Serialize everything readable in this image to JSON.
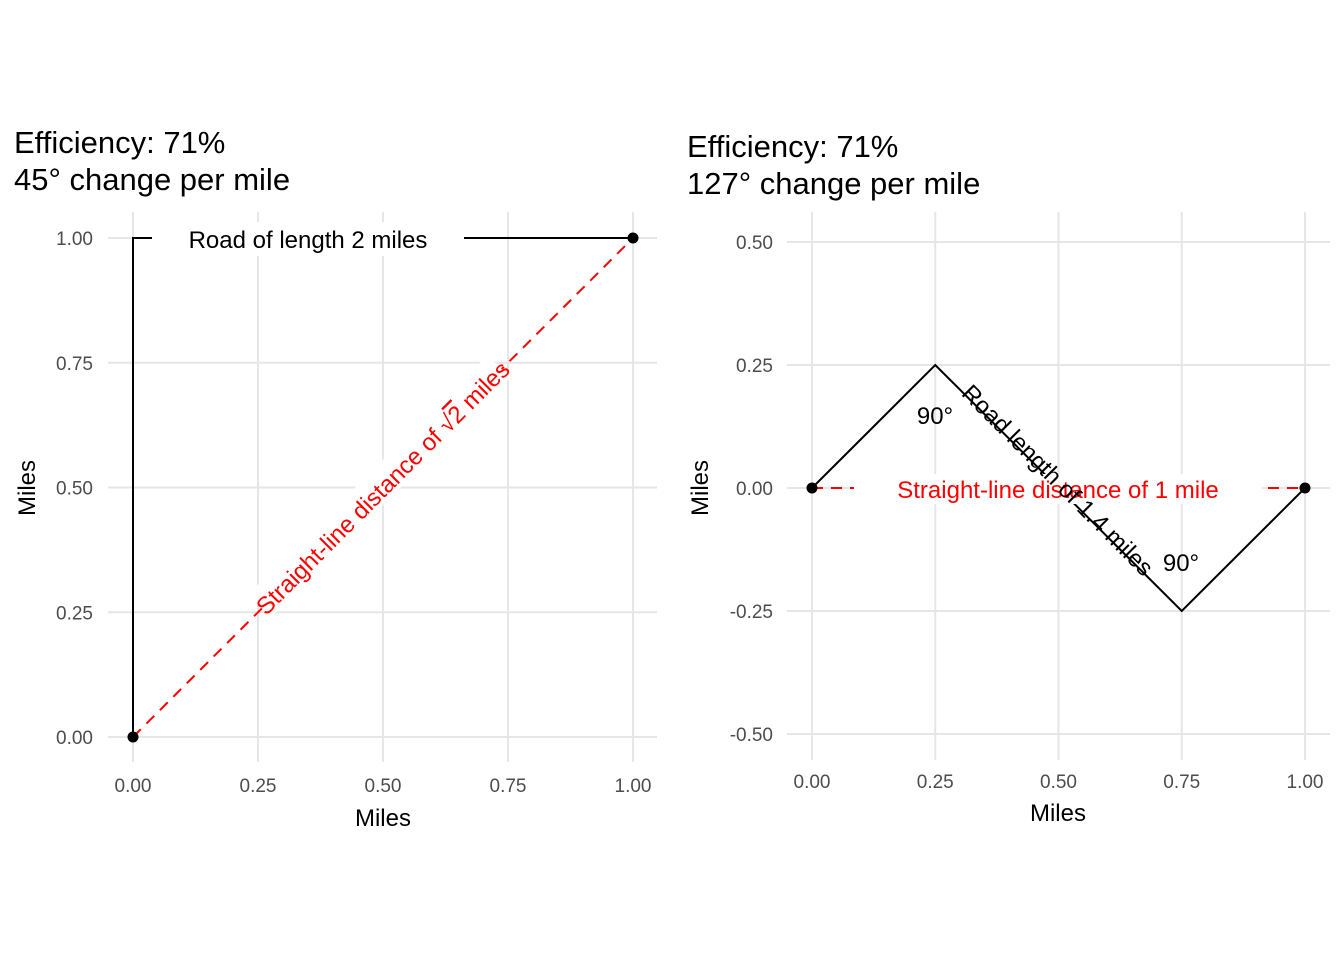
{
  "colors": {
    "road": "#000000",
    "straight": "#ff0000",
    "grid": "#e6e6e6",
    "tick": "#4d4d4d"
  },
  "chart_data": [
    {
      "type": "line",
      "title": "Efficiency: 71%",
      "subtitle": "45° change per mile",
      "xlabel": "Miles",
      "ylabel": "Miles",
      "xlim": [
        0,
        1
      ],
      "ylim": [
        0,
        1
      ],
      "x_ticks": [
        "0.00",
        "0.25",
        "0.50",
        "0.75",
        "1.00"
      ],
      "y_ticks": [
        "0.00",
        "0.25",
        "0.50",
        "0.75",
        "1.00"
      ],
      "grid": true,
      "series": [
        {
          "kind": "road",
          "points": [
            [
              0,
              0
            ],
            [
              0,
              1
            ],
            [
              1,
              1
            ]
          ]
        },
        {
          "kind": "straight-line",
          "points": [
            [
              0,
              0
            ],
            [
              1,
              1
            ]
          ]
        }
      ],
      "endpoints": [
        [
          0,
          0
        ],
        [
          1,
          1
        ]
      ],
      "annotations": [
        {
          "kind": "road",
          "text": "Road of length 2 miles"
        },
        {
          "kind": "straight",
          "text": "Straight-line distance of ",
          "sqrt": "√",
          "radicand": "2",
          "text_after": " miles"
        }
      ]
    },
    {
      "type": "line",
      "title": "Efficiency: 71%",
      "subtitle": "127° change per mile",
      "xlabel": "Miles",
      "ylabel": "Miles",
      "xlim": [
        0,
        1
      ],
      "ylim": [
        -0.5,
        0.5
      ],
      "x_ticks": [
        "0.00",
        "0.25",
        "0.50",
        "0.75",
        "1.00"
      ],
      "y_ticks": [
        "-0.50",
        "-0.25",
        "0.00",
        "0.25",
        "0.50"
      ],
      "grid": true,
      "series": [
        {
          "kind": "road",
          "points": [
            [
              0,
              0
            ],
            [
              0.25,
              0.25
            ],
            [
              0.75,
              -0.25
            ],
            [
              1,
              0
            ]
          ]
        },
        {
          "kind": "straight-line",
          "points": [
            [
              0,
              0
            ],
            [
              1,
              0
            ]
          ]
        }
      ],
      "endpoints": [
        [
          0,
          0
        ],
        [
          1,
          0
        ]
      ],
      "annotations": [
        {
          "kind": "road",
          "text": "Road length of 1.4 miles"
        },
        {
          "kind": "straight",
          "text": "Straight-line distance of 1 mile"
        },
        {
          "kind": "angle",
          "text": "90°"
        },
        {
          "kind": "angle",
          "text": "90°"
        }
      ]
    }
  ]
}
